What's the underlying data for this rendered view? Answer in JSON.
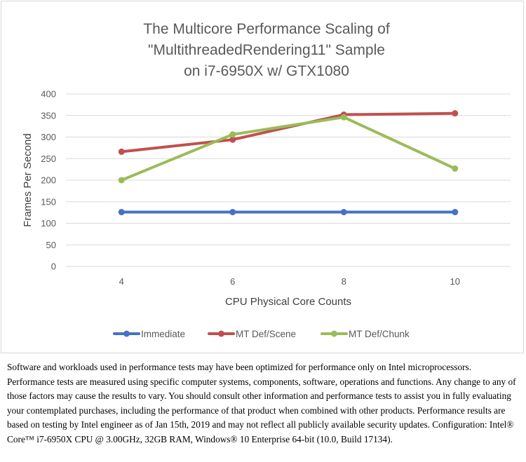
{
  "chart_data": {
    "type": "line",
    "title_lines": [
      "The Multicore Performance Scaling of",
      "\"MultithreadedRendering11\" Sample",
      "on i7-6950X w/ GTX1080"
    ],
    "xlabel": "CPU Physical Core Counts",
    "ylabel": "Frames Per Second",
    "categories": [
      "4",
      "6",
      "8",
      "10"
    ],
    "y_ticks": [
      0,
      50,
      100,
      150,
      200,
      250,
      300,
      350,
      400
    ],
    "ylim": [
      0,
      400
    ],
    "grid": true,
    "legend_position": "bottom",
    "series": [
      {
        "name": "Immediate",
        "color": "#4472c4",
        "values": [
          126,
          126,
          126,
          126
        ]
      },
      {
        "name": "MT Def/Scene",
        "color": "#c0504d",
        "values": [
          266,
          294,
          352,
          355
        ]
      },
      {
        "name": "MT Def/Chunk",
        "color": "#9bbb59",
        "values": [
          200,
          306,
          346,
          227
        ]
      }
    ]
  },
  "disclaimer": "Software and workloads used in performance tests may have been optimized for performance only on Intel microprocessors.  Performance tests are measured using specific computer systems, components, software, operations and functions.  Any change to any of those factors may cause the results to vary.  You should consult other information and performance tests to assist you in fully evaluating your contemplated purchases, including the performance of that product when combined with other products.  Performance results are based on testing by Intel engineer as of Jan 15th, 2019 and may not reflect all publicly available security updates.  Configuration: Intel® Core™ i7-6950X CPU @ 3.00GHz, 32GB RAM, Windows® 10 Enterprise 64-bit (10.0, Build 17134)."
}
